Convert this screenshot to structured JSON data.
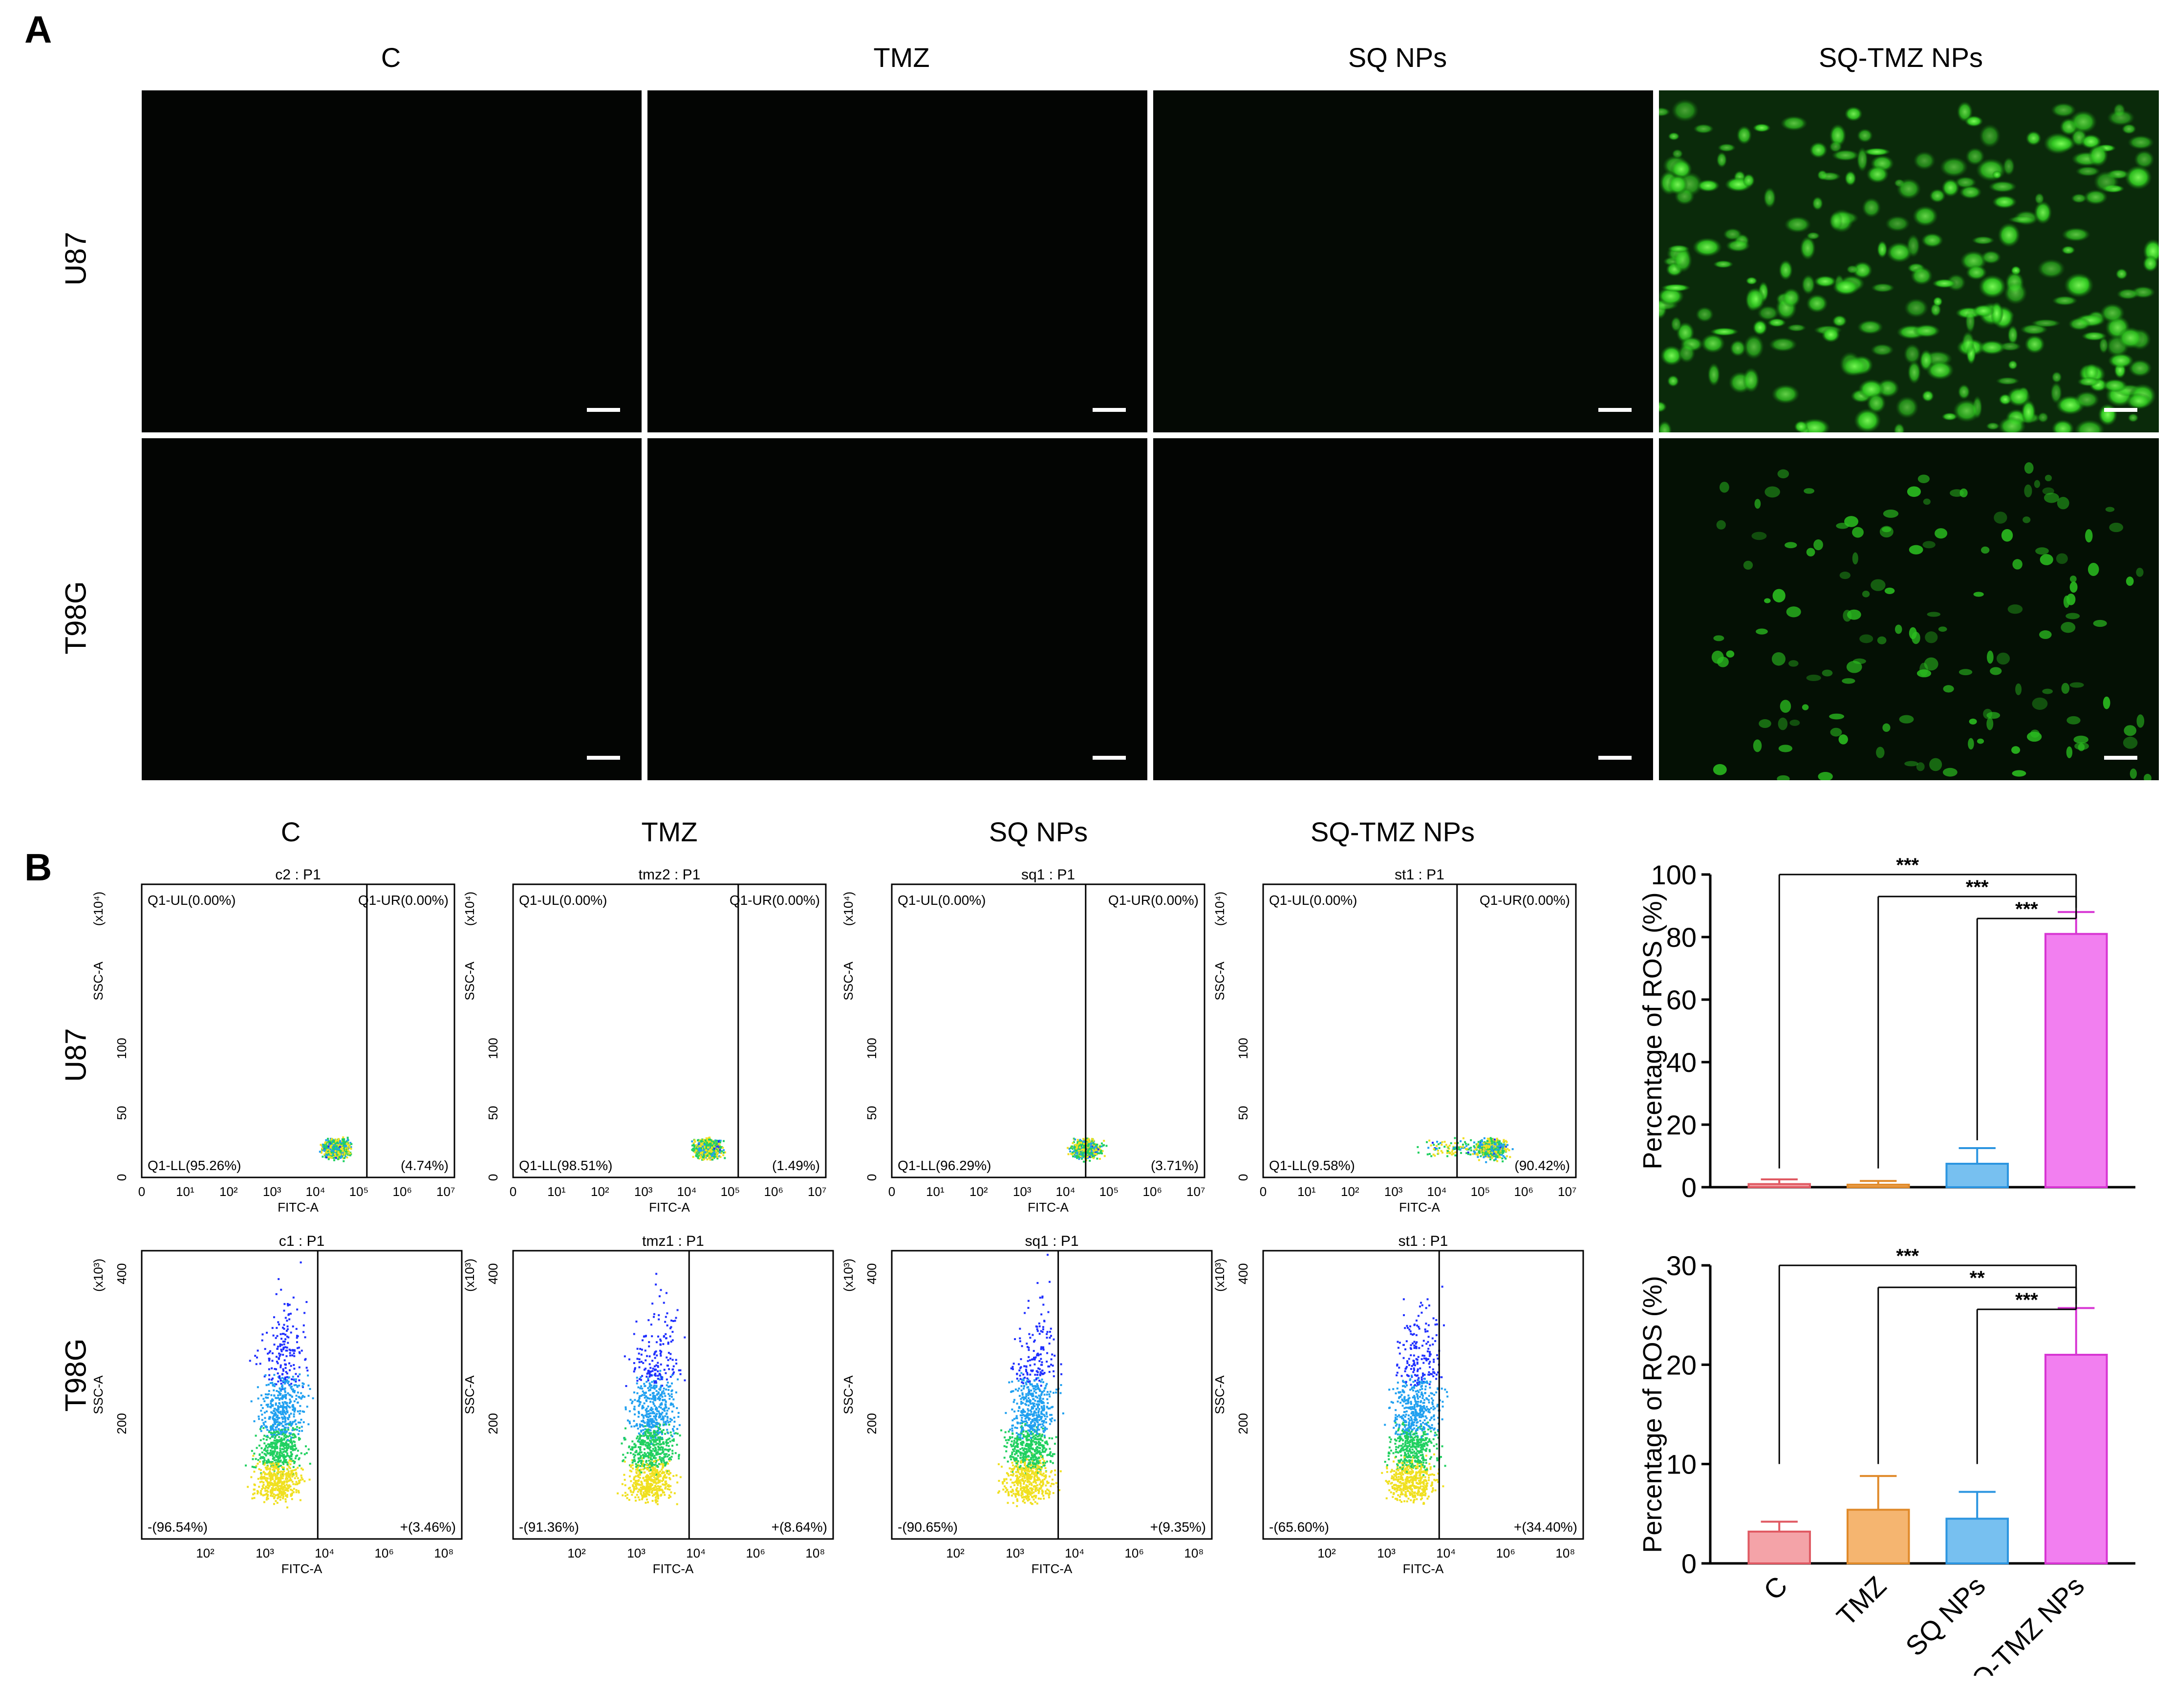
{
  "panel_a": {
    "letter": "A",
    "column_titles": [
      "C",
      "TMZ",
      "SQ NPs",
      "SQ-TMZ NPs"
    ],
    "row_labels": [
      "U87",
      "T98G"
    ]
  },
  "panel_b": {
    "letter": "B",
    "column_titles": [
      "C",
      "TMZ",
      "SQ NPs",
      "SQ-TMZ NPs"
    ],
    "row_labels": [
      "U87",
      "T98G"
    ],
    "flow": {
      "u87": {
        "titles": [
          "c2 : P1",
          "tmz2 : P1",
          "sq1 : P1",
          "st1 : P1"
        ],
        "ul": "Q1-UL(0.00%)",
        "ur": "Q1-UR(0.00%)",
        "ll": [
          "Q1-LL(95.26%)",
          "Q1-LL(98.51%)",
          "Q1-LL(96.29%)",
          "Q1-LL(9.58%)"
        ],
        "lr": [
          "(4.74%)",
          "(1.49%)",
          "(3.71%)",
          "(90.42%)"
        ],
        "xlabel": "FITC-A",
        "ylabel": "SSC-A",
        "yunit": "(x10⁴)",
        "yticks": [
          "0",
          "50",
          "100"
        ],
        "xticks": [
          "0",
          "10¹",
          "10²",
          "10³",
          "10⁴",
          "10⁵",
          "10⁶",
          "10⁷"
        ]
      },
      "t98g": {
        "titles": [
          "c1 : P1",
          "tmz1 : P1",
          "sq1 : P1",
          "st1 : P1"
        ],
        "left": [
          "-(96.54%)",
          "-(91.36%)",
          "-(90.65%)",
          "-(65.60%)"
        ],
        "right": [
          "+(3.46%)",
          "+(8.64%)",
          "+(9.35%)",
          "+(34.40%)"
        ],
        "xlabel": "FITC-A",
        "ylabel": "SSC-A",
        "yunit": "(x10³)",
        "yticks": [
          "200",
          "400"
        ],
        "xticks": [
          "10²",
          "10³",
          "10⁴",
          "10⁶",
          "10⁸"
        ]
      }
    }
  },
  "chart_data": [
    {
      "type": "bar",
      "ylabel": "Percentage of ROS (%)",
      "ylim": [
        0,
        100
      ],
      "yticks": [
        0,
        20,
        40,
        60,
        80,
        100
      ],
      "categories": [
        "C",
        "TMZ",
        "SQ NPs",
        "SQ-TMZ NPs"
      ],
      "values": [
        1.0,
        0.8,
        7.5,
        81
      ],
      "errors": [
        1.5,
        1.2,
        5.0,
        7.0
      ],
      "significance": [
        "***",
        "***",
        "***"
      ],
      "colors": [
        "#f4a3a8",
        "#f5b570",
        "#77c0f0",
        "#f27ff0"
      ],
      "edge_colors": [
        "#e05a63",
        "#e08a2a",
        "#2c95e0",
        "#d735d3"
      ]
    },
    {
      "type": "bar",
      "ylabel": "Percentage of ROS (%)",
      "ylim": [
        0,
        30
      ],
      "yticks": [
        0,
        10,
        20,
        30
      ],
      "categories": [
        "C",
        "TMZ",
        "SQ NPs",
        "SQ-TMZ NPs"
      ],
      "values": [
        3.2,
        5.4,
        4.5,
        21
      ],
      "errors": [
        1.0,
        3.4,
        2.7,
        4.7
      ],
      "significance": [
        "***",
        "**",
        "***"
      ],
      "colors": [
        "#f4a3a8",
        "#f5b570",
        "#77c0f0",
        "#f27ff0"
      ],
      "edge_colors": [
        "#e05a63",
        "#e08a2a",
        "#2c95e0",
        "#d735d3"
      ]
    }
  ]
}
